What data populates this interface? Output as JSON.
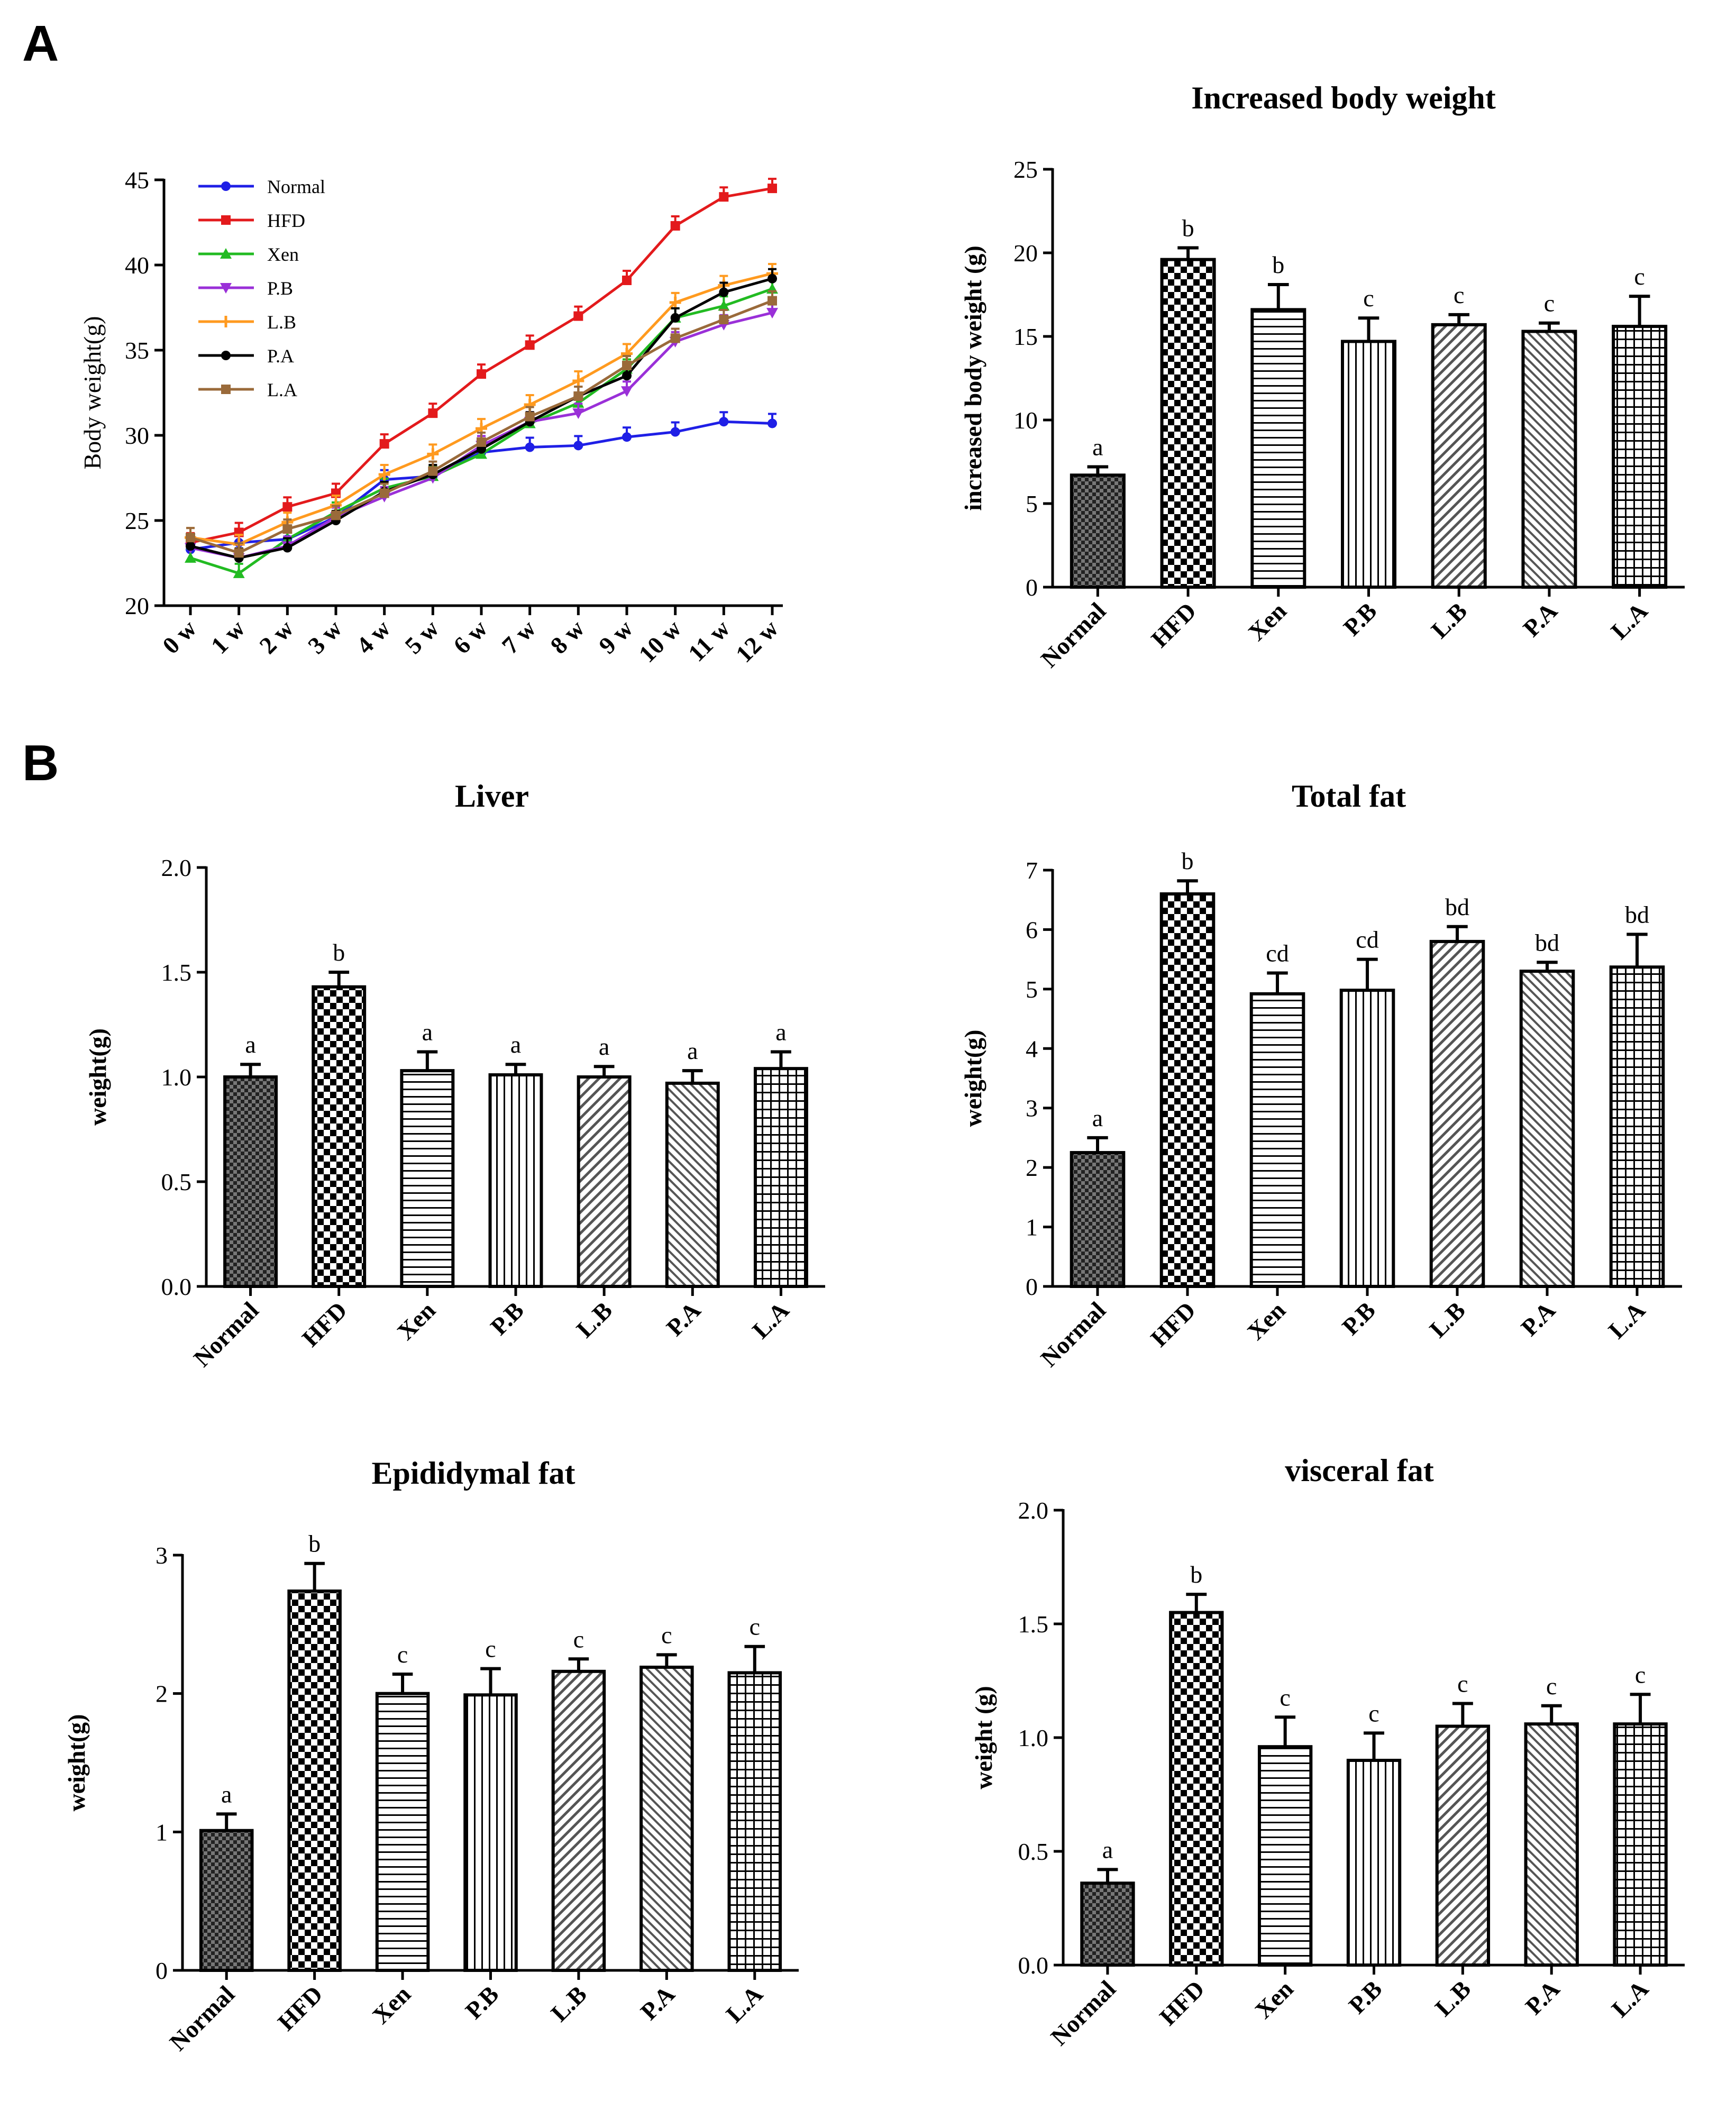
{
  "panels": {
    "a": "A",
    "b": "B"
  },
  "colors": {
    "Normal": "#1f1fe6",
    "HFD": "#e31a1c",
    "Xen": "#22bb22",
    "P.B": "#9a30d8",
    "L.B": "#ff9a1f",
    "P.A": "#000000",
    "L.A": "#9a6a3a"
  },
  "chart_data": [
    {
      "id": "body-weight-line",
      "type": "line",
      "title": "",
      "xlabel": "",
      "ylabel": "Body weight(g)",
      "categories": [
        "0 w",
        "1 w",
        "2 w",
        "3 w",
        "4 w",
        "5 w",
        "6 w",
        "7 w",
        "8 w",
        "9 w",
        "10 w",
        "11 w",
        "12 w"
      ],
      "ylim": [
        20,
        45
      ],
      "yticks": [
        20,
        25,
        30,
        35,
        40,
        45
      ],
      "legend": [
        "Normal",
        "HFD",
        "Xen",
        "P.B",
        "L.B",
        "P.A",
        "L.A"
      ],
      "series": [
        {
          "name": "Normal",
          "values": [
            23.3,
            23.7,
            23.9,
            25.2,
            27.4,
            27.6,
            29.0,
            29.3,
            29.4,
            29.9,
            30.2,
            30.8,
            30.7
          ]
        },
        {
          "name": "HFD",
          "values": [
            23.7,
            24.3,
            25.8,
            26.6,
            29.5,
            31.3,
            33.6,
            35.3,
            37.0,
            39.1,
            42.3,
            44.0,
            44.5
          ]
        },
        {
          "name": "Xen",
          "values": [
            22.8,
            21.9,
            23.9,
            25.5,
            26.9,
            27.6,
            28.9,
            30.7,
            31.9,
            33.9,
            36.9,
            37.6,
            38.6
          ]
        },
        {
          "name": "P.B",
          "values": [
            23.4,
            22.8,
            23.5,
            25.2,
            26.4,
            27.5,
            29.4,
            30.8,
            31.3,
            32.6,
            35.5,
            36.5,
            37.2
          ]
        },
        {
          "name": "L.B",
          "values": [
            24.0,
            23.6,
            24.9,
            25.9,
            27.7,
            28.9,
            30.4,
            31.8,
            33.2,
            34.8,
            37.8,
            38.8,
            39.5
          ]
        },
        {
          "name": "P.A",
          "values": [
            23.5,
            22.8,
            23.4,
            25.0,
            26.7,
            27.7,
            29.2,
            30.8,
            32.3,
            33.5,
            36.9,
            38.4,
            39.2
          ]
        },
        {
          "name": "L.A",
          "values": [
            24.0,
            23.1,
            24.5,
            25.3,
            26.6,
            27.9,
            29.6,
            31.1,
            32.3,
            34.1,
            35.7,
            36.8,
            37.9
          ]
        }
      ]
    },
    {
      "id": "increased-weight",
      "type": "bar",
      "title": "Increased body weight",
      "ylabel": "increased body weight (g)",
      "categories": [
        "Normal",
        "HFD",
        "Xen",
        "P.B",
        "L.B",
        "P.A",
        "L.A"
      ],
      "values": [
        6.7,
        19.6,
        16.6,
        14.7,
        15.7,
        15.3,
        15.6
      ],
      "errors": [
        0.5,
        0.7,
        1.5,
        1.4,
        0.6,
        0.5,
        1.8
      ],
      "labels": [
        "a",
        "b",
        "b",
        "c",
        "c",
        "c",
        "c"
      ],
      "ylim": [
        0,
        25
      ],
      "yticks": [
        0,
        5,
        10,
        15,
        20,
        25
      ]
    },
    {
      "id": "liver",
      "type": "bar",
      "title": "Liver",
      "ylabel": "weight(g)",
      "categories": [
        "Normal",
        "HFD",
        "Xen",
        "P.B",
        "L.B",
        "P.A",
        "L.A"
      ],
      "values": [
        1.0,
        1.43,
        1.03,
        1.01,
        1.0,
        0.97,
        1.04
      ],
      "errors": [
        0.06,
        0.07,
        0.09,
        0.05,
        0.05,
        0.06,
        0.08
      ],
      "labels": [
        "a",
        "b",
        "a",
        "a",
        "a",
        "a",
        "a"
      ],
      "ylim": [
        0,
        2.0
      ],
      "yticks": [
        "0.0",
        "0.5",
        "1.0",
        "1.5",
        "2.0"
      ]
    },
    {
      "id": "total-fat",
      "type": "bar",
      "title": "Total fat",
      "ylabel": "weight(g)",
      "categories": [
        "Normal",
        "HFD",
        "Xen",
        "P.B",
        "L.B",
        "P.A",
        "L.A"
      ],
      "values": [
        2.25,
        6.6,
        4.92,
        4.98,
        5.8,
        5.3,
        5.37
      ],
      "errors": [
        0.25,
        0.22,
        0.35,
        0.52,
        0.25,
        0.15,
        0.55
      ],
      "labels": [
        "a",
        "b",
        "cd",
        "cd",
        "bd",
        "bd",
        "bd"
      ],
      "ylim": [
        0,
        7
      ],
      "yticks": [
        0,
        1,
        2,
        3,
        4,
        5,
        6,
        7
      ]
    },
    {
      "id": "epididymal-fat",
      "type": "bar",
      "title": "Epididymal fat",
      "ylabel": "weight(g)",
      "categories": [
        "Normal",
        "HFD",
        "Xen",
        "P.B",
        "L.B",
        "P.A",
        "L.A"
      ],
      "values": [
        1.01,
        2.74,
        2.0,
        1.99,
        2.16,
        2.19,
        2.15
      ],
      "errors": [
        0.12,
        0.2,
        0.14,
        0.19,
        0.09,
        0.09,
        0.19
      ],
      "labels": [
        "a",
        "b",
        "c",
        "c",
        "c",
        "c",
        "c"
      ],
      "ylim": [
        0,
        3
      ],
      "yticks": [
        0,
        1,
        2,
        3
      ]
    },
    {
      "id": "visceral-fat",
      "type": "bar",
      "title": "visceral fat",
      "ylabel": "weight (g)",
      "categories": [
        "Normal",
        "HFD",
        "Xen",
        "P.B",
        "L.B",
        "P.A",
        "L.A"
      ],
      "values": [
        0.36,
        1.55,
        0.96,
        0.9,
        1.05,
        1.06,
        1.06
      ],
      "errors": [
        0.06,
        0.08,
        0.13,
        0.12,
        0.1,
        0.08,
        0.13
      ],
      "labels": [
        "a",
        "b",
        "c",
        "c",
        "c",
        "c",
        "c"
      ],
      "ylim": [
        0,
        2.0
      ],
      "yticks": [
        "0.0",
        "0.5",
        "1.0",
        "1.5",
        "2.0"
      ]
    }
  ]
}
